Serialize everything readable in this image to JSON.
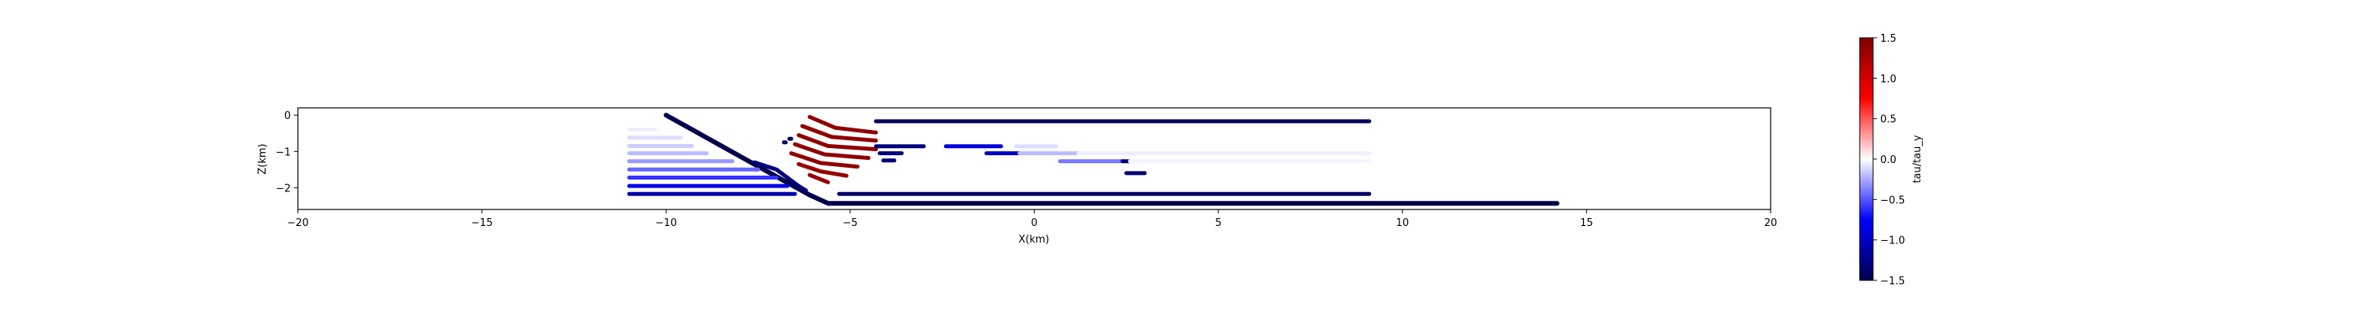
{
  "chart_data": {
    "type": "scatter",
    "title": "",
    "xlabel": "X(km)",
    "ylabel": "Z(km)",
    "xlim": [
      -20,
      20
    ],
    "ylim": [
      -2.6,
      0.2
    ],
    "x_ticks": [
      -20,
      -15,
      -10,
      -5,
      0,
      5,
      10,
      15,
      20
    ],
    "y_ticks": [
      0,
      -1,
      -2
    ],
    "grid": false,
    "legend": "none",
    "colorbar": {
      "label": "tau/tau_y",
      "range": [
        -1.5,
        1.5
      ],
      "ticks": [
        1.5,
        1.0,
        0.5,
        0.0,
        -0.5,
        -1.0,
        -1.5
      ],
      "tick_labels": [
        "1.5",
        "1.0",
        "0.5",
        "0.0",
        "−0.5",
        "−1.0",
        "−1.5"
      ],
      "colormap": "seismic",
      "colormap_stops": [
        "#00004c",
        "#0000ff",
        "#ffffff",
        "#ff0000",
        "#7f0000"
      ]
    },
    "series": [
      {
        "kind": "line",
        "value": -1.5,
        "width": 6,
        "points": [
          [
            -10,
            0
          ],
          [
            -6.1,
            -2.2
          ],
          [
            -5.6,
            -2.43
          ],
          [
            14.2,
            -2.43
          ]
        ]
      },
      {
        "kind": "line",
        "value": -1.45,
        "width": 5,
        "points": [
          [
            -4.3,
            -0.17
          ],
          [
            9.1,
            -0.17
          ]
        ]
      },
      {
        "kind": "line",
        "value": -1.4,
        "width": 5,
        "points": [
          [
            -5.3,
            -2.17
          ],
          [
            9.1,
            -2.17
          ]
        ]
      },
      {
        "kind": "line",
        "value": 1.4,
        "width": 5,
        "points": [
          [
            -6.1,
            -0.05
          ],
          [
            -5.4,
            -0.35
          ],
          [
            -4.3,
            -0.48
          ]
        ]
      },
      {
        "kind": "line",
        "value": 1.4,
        "width": 5,
        "points": [
          [
            -6.3,
            -0.3
          ],
          [
            -5.5,
            -0.6
          ],
          [
            -4.3,
            -0.7
          ]
        ]
      },
      {
        "kind": "line",
        "value": 1.4,
        "width": 5,
        "points": [
          [
            -6.4,
            -0.55
          ],
          [
            -5.6,
            -0.85
          ],
          [
            -4.3,
            -0.94
          ]
        ]
      },
      {
        "kind": "line",
        "value": 1.4,
        "width": 5,
        "points": [
          [
            -6.5,
            -0.8
          ],
          [
            -5.7,
            -1.08
          ],
          [
            -4.5,
            -1.18
          ]
        ]
      },
      {
        "kind": "line",
        "value": 1.4,
        "width": 5,
        "points": [
          [
            -6.6,
            -1.05
          ],
          [
            -5.8,
            -1.32
          ],
          [
            -4.8,
            -1.42
          ]
        ]
      },
      {
        "kind": "line",
        "value": 1.35,
        "width": 5,
        "points": [
          [
            -6.4,
            -1.35
          ],
          [
            -5.8,
            -1.55
          ],
          [
            -5.1,
            -1.67
          ]
        ]
      },
      {
        "kind": "line",
        "value": 1.35,
        "width": 5,
        "points": [
          [
            -6.1,
            -1.65
          ],
          [
            -5.6,
            -1.85
          ]
        ]
      },
      {
        "kind": "line",
        "value": -1.3,
        "width": 5,
        "points": [
          [
            -7.6,
            -1.3
          ],
          [
            -7.0,
            -1.5
          ],
          [
            -6.4,
            -1.95
          ],
          [
            -6.2,
            -2.08
          ]
        ]
      },
      {
        "kind": "line",
        "value": -0.05,
        "width": 5,
        "points": [
          [
            -11,
            -0.4
          ],
          [
            -10.3,
            -0.4
          ]
        ]
      },
      {
        "kind": "line",
        "value": -0.1,
        "width": 5,
        "points": [
          [
            -11,
            -0.62
          ],
          [
            -9.6,
            -0.62
          ]
        ]
      },
      {
        "kind": "line",
        "value": -0.15,
        "width": 5,
        "points": [
          [
            -11,
            -0.85
          ],
          [
            -9.3,
            -0.85
          ]
        ]
      },
      {
        "kind": "line",
        "value": -0.2,
        "width": 5,
        "points": [
          [
            -11,
            -1.05
          ],
          [
            -8.9,
            -1.05
          ]
        ]
      },
      {
        "kind": "line",
        "value": -0.3,
        "width": 5,
        "points": [
          [
            -11,
            -1.27
          ],
          [
            -8.2,
            -1.27
          ]
        ]
      },
      {
        "kind": "line",
        "value": -0.45,
        "width": 5,
        "points": [
          [
            -11,
            -1.5
          ],
          [
            -7.5,
            -1.5
          ]
        ]
      },
      {
        "kind": "line",
        "value": -0.6,
        "width": 5,
        "points": [
          [
            -11,
            -1.72
          ],
          [
            -7.0,
            -1.72
          ]
        ]
      },
      {
        "kind": "line",
        "value": -0.85,
        "width": 5,
        "points": [
          [
            -11,
            -1.95
          ],
          [
            -6.7,
            -1.95
          ]
        ]
      },
      {
        "kind": "line",
        "value": -1.1,
        "width": 5,
        "points": [
          [
            -11,
            -2.17
          ],
          [
            -6.5,
            -2.17
          ]
        ]
      },
      {
        "kind": "line",
        "value": -1.3,
        "width": 5,
        "points": [
          [
            -4.3,
            -0.86
          ],
          [
            -3.0,
            -0.86
          ]
        ]
      },
      {
        "kind": "line",
        "value": -1.3,
        "width": 5,
        "points": [
          [
            -4.2,
            -1.05
          ],
          [
            -3.6,
            -1.05
          ]
        ]
      },
      {
        "kind": "line",
        "value": -1.3,
        "width": 5,
        "points": [
          [
            -4.1,
            -1.25
          ],
          [
            -3.8,
            -1.25
          ]
        ]
      },
      {
        "kind": "line",
        "value": -0.9,
        "width": 5,
        "points": [
          [
            -2.4,
            -0.86
          ],
          [
            -0.9,
            -0.86
          ]
        ]
      },
      {
        "kind": "line",
        "value": -1.0,
        "width": 5,
        "points": [
          [
            -1.3,
            -1.05
          ],
          [
            -0.4,
            -1.05
          ]
        ]
      },
      {
        "kind": "line",
        "value": -0.1,
        "width": 5,
        "points": [
          [
            -0.5,
            -0.86
          ],
          [
            0.6,
            -0.86
          ]
        ]
      },
      {
        "kind": "line",
        "value": -0.2,
        "width": 5,
        "points": [
          [
            -0.4,
            -1.05
          ],
          [
            1.2,
            -1.05
          ]
        ]
      },
      {
        "kind": "line",
        "value": -0.4,
        "width": 5,
        "points": [
          [
            0.7,
            -1.27
          ],
          [
            2.4,
            -1.27
          ]
        ]
      },
      {
        "kind": "line",
        "value": -1.3,
        "width": 5,
        "points": [
          [
            2.4,
            -1.27
          ],
          [
            2.6,
            -1.27
          ]
        ]
      },
      {
        "kind": "line",
        "value": -1.35,
        "width": 5,
        "points": [
          [
            2.5,
            -1.6
          ],
          [
            3.0,
            -1.6
          ]
        ]
      },
      {
        "kind": "line",
        "value": -0.05,
        "width": 5,
        "points": [
          [
            1.2,
            -1.05
          ],
          [
            9.1,
            -1.05
          ]
        ]
      },
      {
        "kind": "line",
        "value": -0.03,
        "width": 5,
        "points": [
          [
            2.6,
            -1.27
          ],
          [
            9.1,
            -1.27
          ]
        ]
      },
      {
        "kind": "line",
        "value": -1.4,
        "width": 5,
        "points": [
          [
            -6.8,
            -0.75
          ],
          [
            -6.75,
            -0.75
          ]
        ]
      },
      {
        "kind": "line",
        "value": -1.4,
        "width": 5,
        "points": [
          [
            -6.65,
            -0.65
          ],
          [
            -6.6,
            -0.65
          ]
        ]
      }
    ]
  }
}
